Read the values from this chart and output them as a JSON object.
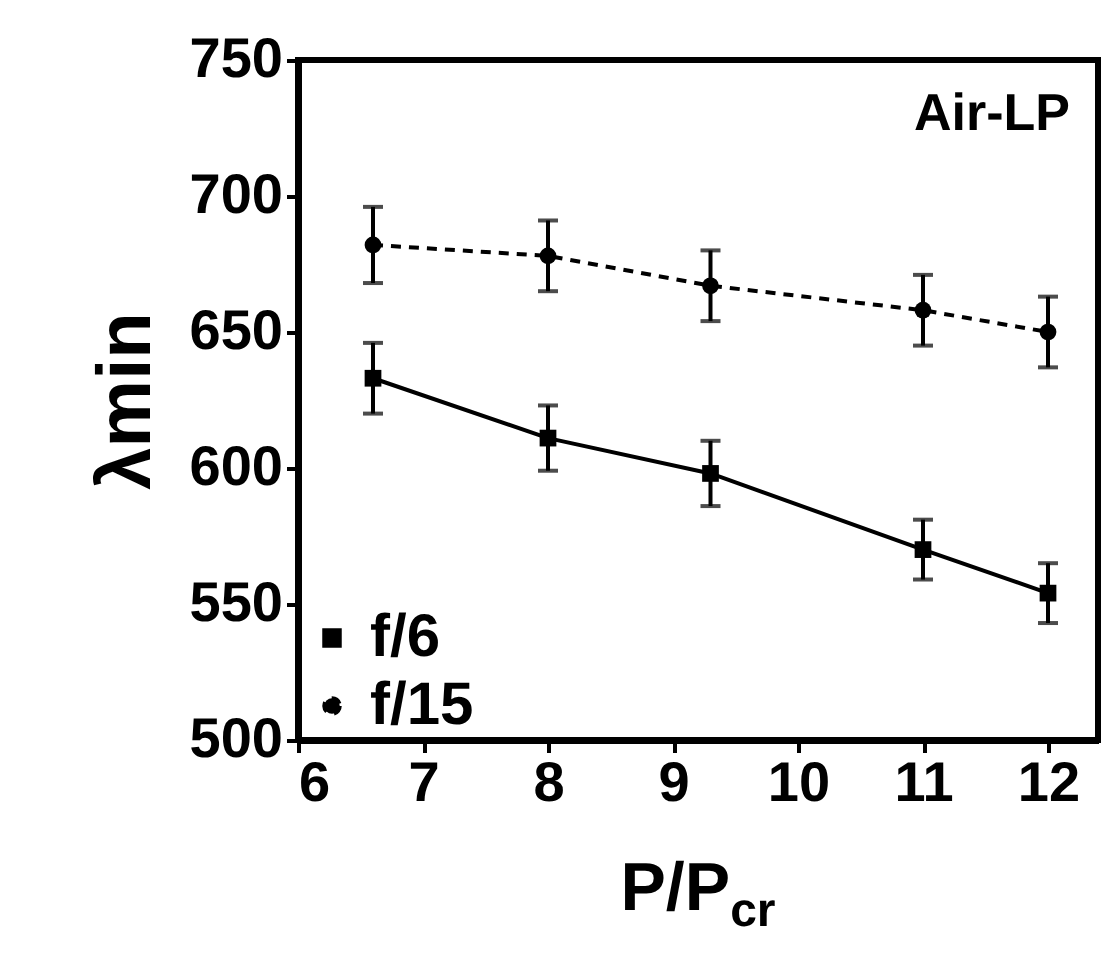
{
  "chart_data": {
    "type": "line",
    "xlabel": "P/P$_{cr}$",
    "ylabel": "λmin",
    "annotations": [
      "Air-LP"
    ],
    "xlim": [
      6,
      12.4
    ],
    "ylim": [
      500,
      750
    ],
    "xticks": [
      6,
      7,
      8,
      9,
      10,
      11,
      12
    ],
    "yticks": [
      500,
      550,
      600,
      650,
      700,
      750
    ],
    "grid": false,
    "legend": "bottom left",
    "series": [
      {
        "name": "f/6",
        "color": "#000000",
        "marker": "square",
        "line_style": "solid",
        "x": [
          6.6,
          8,
          9.3,
          11,
          12
        ],
        "values": [
          633,
          611,
          598,
          570,
          554
        ],
        "errors": [
          13,
          12,
          12,
          11,
          11
        ]
      },
      {
        "name": "f/15",
        "color": "#000000",
        "marker": "circle",
        "line_style": "dashed",
        "x": [
          6.6,
          8,
          9.3,
          11,
          12
        ],
        "values": [
          682,
          678,
          667,
          658,
          650
        ],
        "errors": [
          14,
          13,
          13,
          13,
          13
        ]
      }
    ]
  }
}
